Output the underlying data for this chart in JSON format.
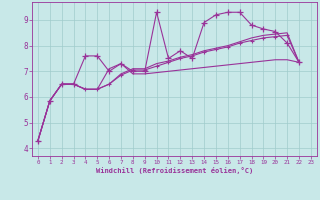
{
  "background_color": "#c8e8e8",
  "line_color": "#993399",
  "xlabel": "Windchill (Refroidissement éolien,°C)",
  "ylim": [
    3.7,
    9.7
  ],
  "xlim": [
    -0.5,
    23.5
  ],
  "yticks": [
    4,
    5,
    6,
    7,
    8,
    9
  ],
  "xticks": [
    0,
    1,
    2,
    3,
    4,
    5,
    6,
    7,
    8,
    9,
    10,
    11,
    12,
    13,
    14,
    15,
    16,
    17,
    18,
    19,
    20,
    21,
    22,
    23
  ],
  "grid_color": "#a0cccc",
  "series1_x": [
    0,
    1,
    2,
    3,
    4,
    5,
    6,
    7,
    8,
    9,
    10,
    11,
    12,
    13,
    14,
    15,
    16,
    17,
    18,
    19,
    20,
    21,
    22
  ],
  "series1_y": [
    4.3,
    5.85,
    6.5,
    6.5,
    7.6,
    7.6,
    7.0,
    7.3,
    7.0,
    7.0,
    9.3,
    7.5,
    7.8,
    7.5,
    8.9,
    9.2,
    9.3,
    9.3,
    8.8,
    8.65,
    8.55,
    8.1,
    7.35
  ],
  "series2_x": [
    0,
    1,
    2,
    3,
    4,
    5,
    6,
    7,
    8,
    9,
    10,
    11,
    12,
    13,
    14,
    15,
    16,
    17,
    18,
    19,
    20,
    21,
    22
  ],
  "series2_y": [
    4.3,
    5.85,
    6.5,
    6.5,
    6.3,
    6.3,
    6.5,
    6.85,
    7.05,
    7.05,
    7.2,
    7.35,
    7.5,
    7.6,
    7.75,
    7.85,
    7.95,
    8.1,
    8.2,
    8.3,
    8.35,
    8.4,
    7.35
  ],
  "series3_x": [
    0,
    1,
    2,
    3,
    4,
    5,
    6,
    7,
    8,
    9,
    10,
    11,
    12,
    13,
    14,
    15,
    16,
    17,
    18,
    19,
    20,
    21,
    22
  ],
  "series3_y": [
    4.3,
    5.85,
    6.5,
    6.5,
    6.3,
    6.3,
    6.5,
    6.9,
    7.1,
    7.1,
    7.3,
    7.4,
    7.55,
    7.65,
    7.8,
    7.9,
    8.0,
    8.15,
    8.3,
    8.4,
    8.45,
    8.5,
    7.35
  ],
  "series4_x": [
    0,
    1,
    2,
    3,
    4,
    5,
    6,
    7,
    8,
    9,
    10,
    11,
    12,
    13,
    14,
    15,
    16,
    17,
    18,
    19,
    20,
    21,
    22
  ],
  "series4_y": [
    4.3,
    5.85,
    6.5,
    6.5,
    6.3,
    6.3,
    7.1,
    7.3,
    6.9,
    6.9,
    6.95,
    7.0,
    7.05,
    7.1,
    7.15,
    7.2,
    7.25,
    7.3,
    7.35,
    7.4,
    7.45,
    7.45,
    7.35
  ]
}
